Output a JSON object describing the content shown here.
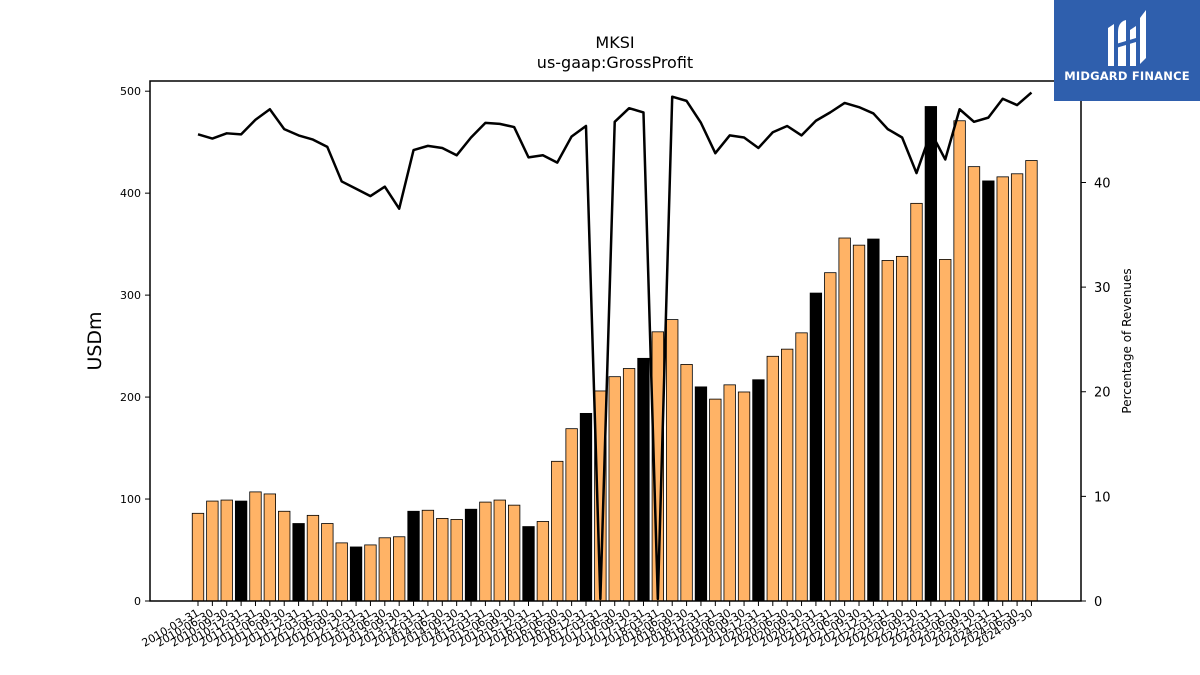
{
  "brand": {
    "name": "MIDGARD FINANCE",
    "bg_color": "#2f5fad",
    "icon": "midgard-logo-icon"
  },
  "chart_data": {
    "type": "bar+line",
    "title": "MKSI",
    "subtitle": "us-gaap:GrossProfit",
    "ylabel": "USDm",
    "y2label": "Percentage of Revenues",
    "ylim": [
      0,
      510
    ],
    "y2lim": [
      0,
      49.7
    ],
    "yticks": [
      0,
      100,
      200,
      300,
      400,
      500
    ],
    "y2ticks": [
      0,
      10,
      20,
      30,
      40
    ],
    "categories": [
      "2010-03-31",
      "2010-06-30",
      "2010-09-30",
      "2010-12-31",
      "2011-03-31",
      "2011-06-30",
      "2011-09-30",
      "2011-12-31",
      "2012-03-31",
      "2012-06-30",
      "2012-09-30",
      "2012-12-31",
      "2013-03-31",
      "2013-06-30",
      "2013-09-30",
      "2013-12-31",
      "2014-03-31",
      "2014-06-30",
      "2014-09-30",
      "2014-12-31",
      "2015-03-31",
      "2015-06-30",
      "2015-09-30",
      "2015-12-31",
      "2016-03-31",
      "2016-06-30",
      "2016-09-30",
      "2016-12-31",
      "2017-03-31",
      "2017-06-30",
      "2017-09-30",
      "2017-12-31",
      "2018-03-31",
      "2018-06-30",
      "2018-09-30",
      "2018-12-31",
      "2019-03-31",
      "2019-06-30",
      "2019-09-30",
      "2019-12-31",
      "2020-03-31",
      "2020-06-30",
      "2020-09-30",
      "2020-12-31",
      "2021-03-31",
      "2021-06-30",
      "2021-09-30",
      "2021-12-31",
      "2022-03-31",
      "2022-06-30",
      "2022-09-30",
      "2022-12-31",
      "2023-03-31",
      "2023-06-30",
      "2023-09-30",
      "2023-12-31",
      "2024-03-31",
      "2024-06-30",
      "2024-09-30"
    ],
    "series": [
      {
        "type": "bar",
        "axis": "left",
        "values": [
          86,
          98,
          99,
          98,
          107,
          105,
          88,
          76,
          84,
          76,
          57,
          53,
          55,
          62,
          63,
          88,
          89,
          81,
          80,
          90,
          97,
          99,
          94,
          73,
          78,
          137,
          169,
          184,
          206,
          220,
          228,
          238,
          264,
          276,
          232,
          210,
          198,
          212,
          205,
          217,
          240,
          247,
          263,
          302,
          322,
          356,
          349,
          355,
          334,
          338,
          390,
          485,
          335,
          471,
          426,
          412,
          416,
          419,
          432
        ],
        "colors": [
          "#ffb366",
          "#ffb366",
          "#ffb366",
          "#000000",
          "#ffb366",
          "#ffb366",
          "#ffb366",
          "#000000",
          "#ffb366",
          "#ffb366",
          "#ffb366",
          "#000000",
          "#ffb366",
          "#ffb366",
          "#ffb366",
          "#000000",
          "#ffb366",
          "#ffb366",
          "#ffb366",
          "#000000",
          "#ffb366",
          "#ffb366",
          "#ffb366",
          "#000000",
          "#ffb366",
          "#ffb366",
          "#ffb366",
          "#000000",
          "#ffb366",
          "#ffb366",
          "#ffb366",
          "#000000",
          "#ffb366",
          "#ffb366",
          "#ffb366",
          "#000000",
          "#ffb366",
          "#ffb366",
          "#ffb366",
          "#000000",
          "#ffb366",
          "#ffb366",
          "#ffb366",
          "#000000",
          "#ffb366",
          "#ffb366",
          "#ffb366",
          "#000000",
          "#ffb366",
          "#ffb366",
          "#ffb366",
          "#000000",
          "#ffb366",
          "#ffb366",
          "#ffb366",
          "#000000",
          "#ffb366",
          "#ffb366",
          "#ffb366"
        ]
      },
      {
        "type": "line",
        "axis": "right",
        "color": "#000000",
        "values": [
          44.6,
          44.2,
          44.7,
          44.6,
          46.0,
          47.0,
          45.1,
          44.5,
          44.1,
          43.4,
          40.1,
          39.4,
          38.7,
          39.6,
          37.5,
          43.1,
          43.5,
          43.3,
          42.6,
          44.3,
          45.7,
          45.6,
          45.3,
          42.4,
          42.6,
          41.9,
          44.4,
          45.4,
          0.2,
          45.8,
          47.1,
          46.7,
          0.2,
          48.2,
          47.8,
          45.7,
          42.8,
          44.5,
          44.3,
          43.3,
          44.8,
          45.4,
          44.5,
          45.9,
          46.7,
          47.6,
          47.2,
          46.6,
          45.1,
          44.3,
          40.9,
          44.8,
          42.2,
          47.0,
          45.8,
          46.2,
          48.0,
          47.4,
          48.6
        ]
      }
    ],
    "grid": false,
    "legend": "none"
  }
}
